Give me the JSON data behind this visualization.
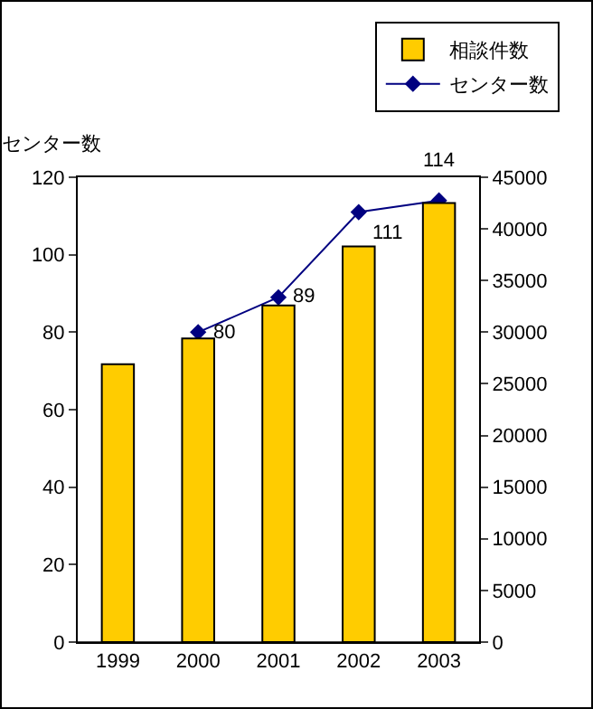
{
  "chart_data": {
    "type": "bar",
    "categories": [
      "1999",
      "2000",
      "2001",
      "2002",
      "2003"
    ],
    "ylabel": "センター数",
    "ylim": [
      0,
      120
    ],
    "yticks": [
      0,
      20,
      40,
      60,
      80,
      100,
      120
    ],
    "y2lim": [
      0,
      45000
    ],
    "y2ticks": [
      0,
      5000,
      10000,
      15000,
      20000,
      25000,
      30000,
      35000,
      40000,
      45000
    ],
    "grid": false,
    "legend": "top right",
    "series": [
      {
        "name": "相談件数",
        "axis": "y2",
        "color": "#ffcc00",
        "values": [
          26900,
          29400,
          32600,
          38300,
          42500
        ]
      },
      {
        "name": "センター数",
        "type": "line",
        "axis": "y",
        "color": "#000080",
        "marker": "diamond",
        "data_labels": true,
        "values": [
          null,
          80,
          89,
          111,
          114
        ]
      }
    ]
  }
}
